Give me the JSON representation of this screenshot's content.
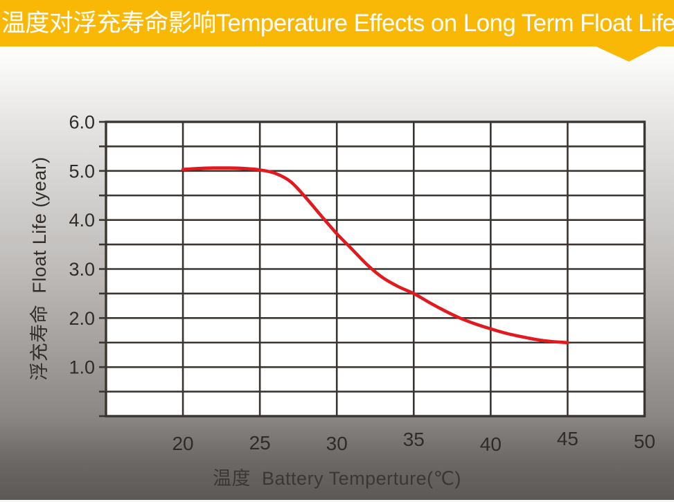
{
  "banner": {
    "title": "温度对浮充寿命影响Temperature Effects on Long Term Float Life",
    "bg_color": "#F9B806",
    "text_color": "#FFFFFF"
  },
  "chart_data": {
    "type": "line",
    "title": "温度对浮充寿命影响Temperature Effects on Long Term Float Life",
    "xlabel": "温度  Battery Temperture(℃)",
    "ylabel": "浮充寿命  Float Life (year)",
    "xlim": [
      15,
      50
    ],
    "ylim": [
      0,
      6
    ],
    "x_gridline_step": 5,
    "y_gridline_step": 0.5,
    "x_tick_labels": [
      "20",
      "25",
      "30",
      "35",
      "40",
      "45",
      "50"
    ],
    "x_tick_values": [
      20,
      25,
      30,
      35,
      40,
      45,
      50
    ],
    "y_tick_labels": [
      "1.0",
      "2.0",
      "3.0",
      "4.0",
      "5.0",
      "6.0"
    ],
    "y_tick_values": [
      1,
      2,
      3,
      4,
      5,
      6
    ],
    "grid": true,
    "legend": "none",
    "plot_bg_color": "#FFFFFF",
    "grid_color": "#3A3531",
    "line_color": "#E2191F",
    "tick_label_color": "#2F2B28",
    "series": [
      {
        "name": "float-life-curve",
        "x": [
          20,
          21,
          22,
          23,
          24,
          25,
          26,
          27,
          28,
          29,
          30,
          31,
          32,
          33,
          34,
          35,
          36,
          37,
          38,
          39,
          40,
          41,
          42,
          43,
          44,
          45
        ],
        "y": [
          5.03,
          5.05,
          5.06,
          5.06,
          5.05,
          5.02,
          4.95,
          4.78,
          4.45,
          4.08,
          3.72,
          3.4,
          3.08,
          2.82,
          2.64,
          2.5,
          2.32,
          2.15,
          2.0,
          1.88,
          1.78,
          1.69,
          1.62,
          1.56,
          1.52,
          1.5
        ]
      }
    ]
  }
}
